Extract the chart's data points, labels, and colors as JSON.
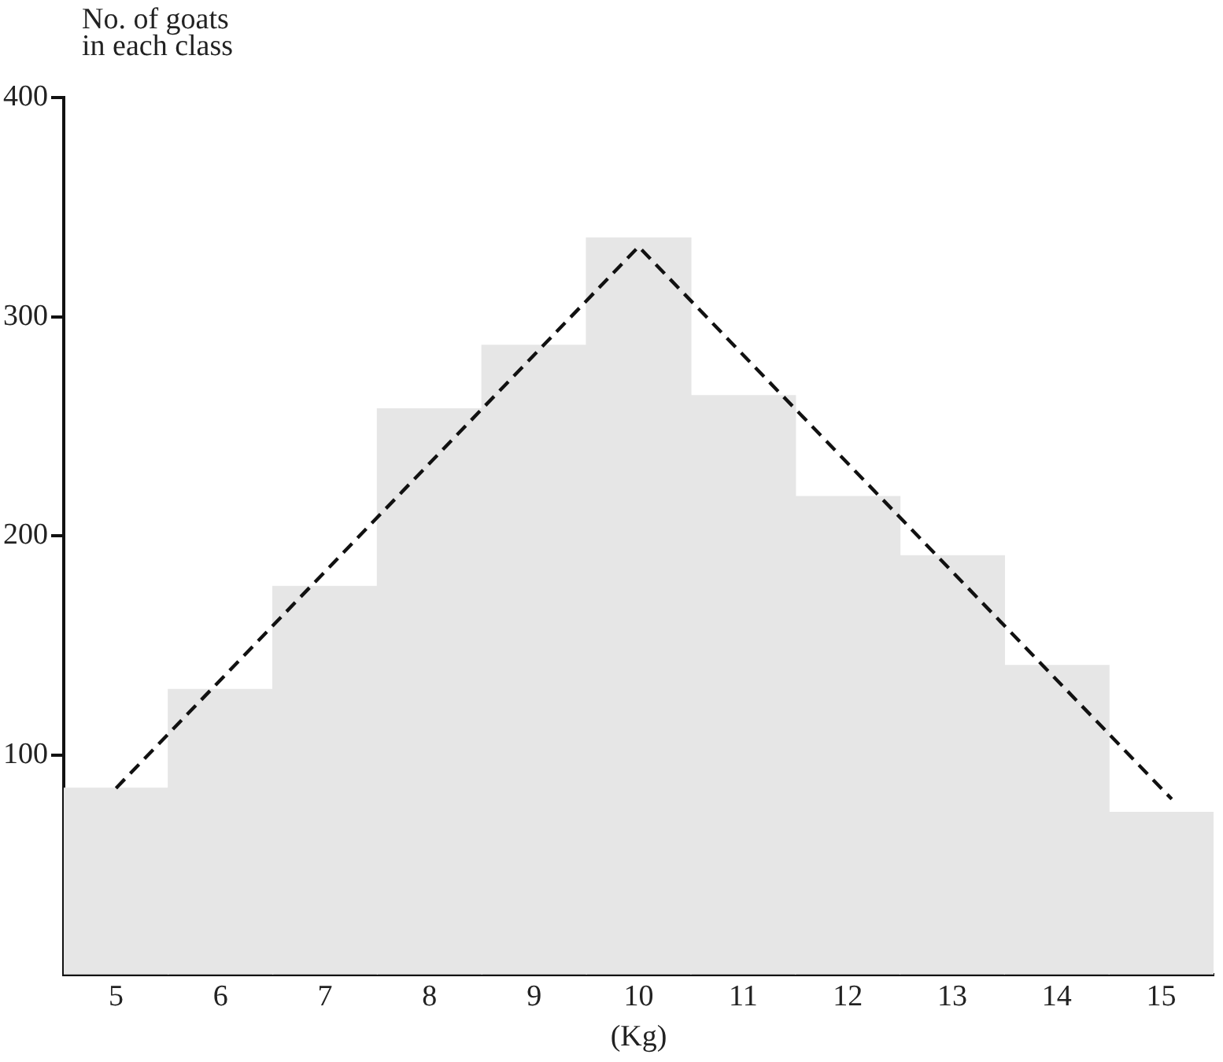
{
  "chart_data": {
    "type": "histogram",
    "xlabel": "(Kg)",
    "ylabel": "No. of goats in each class",
    "bins": [
      4.5,
      5.5,
      6.5,
      7.5,
      8.5,
      9.5,
      10.5,
      11.5,
      12.5,
      13.5,
      14.5,
      15.5
    ],
    "values": [
      85,
      130,
      177,
      258,
      287,
      336,
      264,
      218,
      191,
      141,
      74
    ],
    "color": "#e6e6e6",
    "series": [
      {
        "type": "line",
        "x": [
          5,
          10,
          15.1
        ],
        "values": [
          85,
          332,
          80
        ],
        "color": "#111111",
        "line_style": "dashed"
      }
    ],
    "xlim": [
      4.5,
      15.5
    ],
    "xticks": [
      5,
      6,
      7,
      8,
      9,
      10,
      11,
      12,
      13,
      14,
      15
    ],
    "ylim": [
      0,
      400
    ],
    "yticks": [
      100,
      200,
      300,
      400
    ],
    "grid": false,
    "legend": false,
    "marker": "none"
  }
}
